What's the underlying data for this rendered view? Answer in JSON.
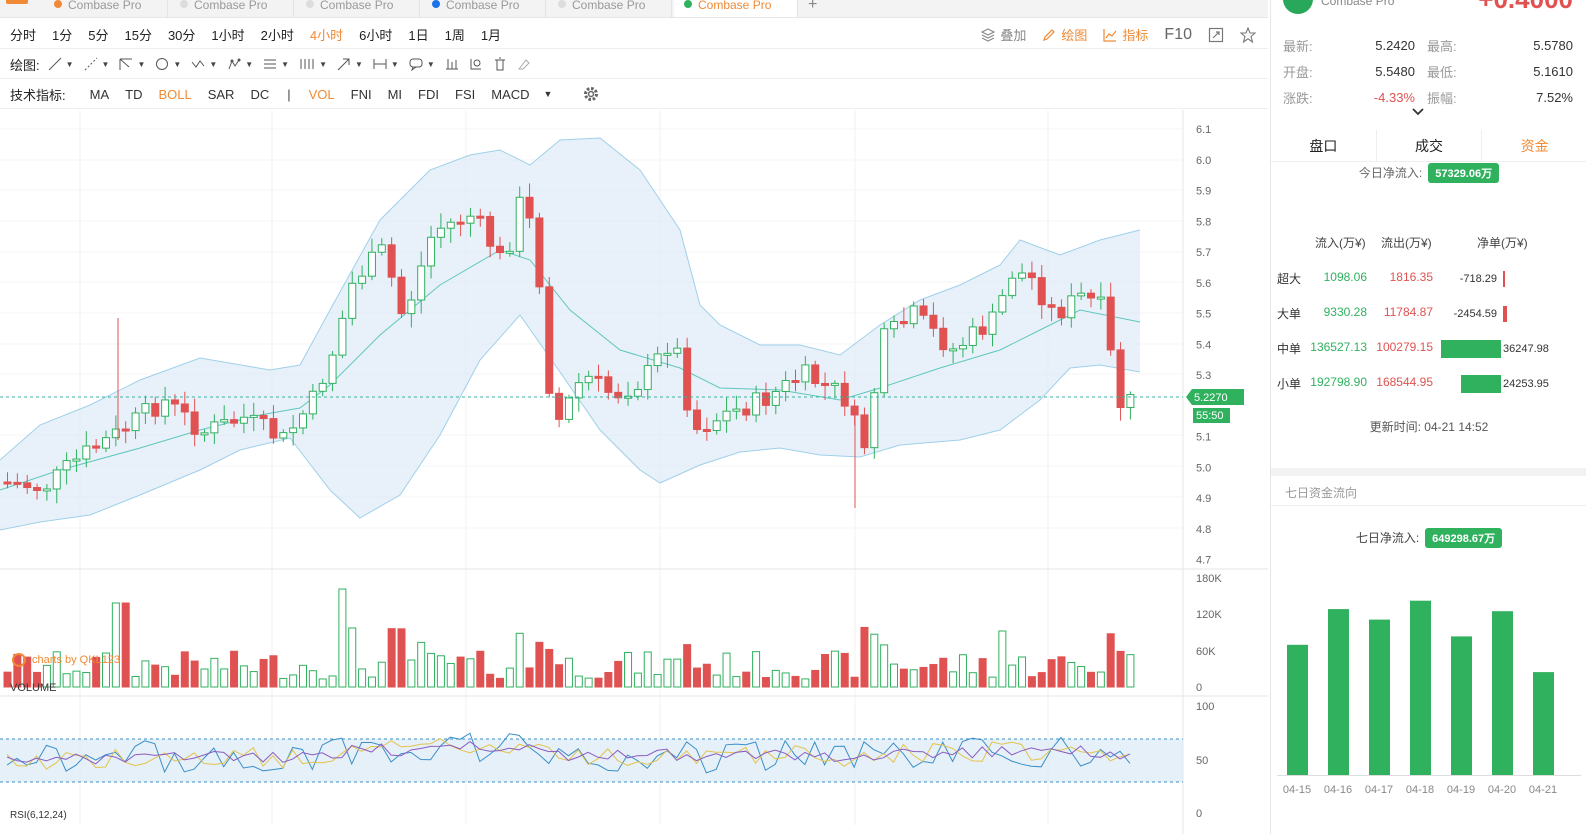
{
  "tabs": [
    {
      "name": "Combase Pro",
      "dot": "#f08a34",
      "active": false
    },
    {
      "name": "Combase Pro",
      "dot": "#dddddd",
      "active": false
    },
    {
      "name": "Combase Pro",
      "dot": "#dddddd",
      "active": false
    },
    {
      "name": "Combase Pro",
      "dot": "#1a73e8",
      "active": false
    },
    {
      "name": "Combase Pro",
      "dot": "#dddddd",
      "active": false
    },
    {
      "name": "Combase Pro",
      "dot": "#2fb15e",
      "active": true
    }
  ],
  "tab_add": "+",
  "timeframes": [
    "分时",
    "1分",
    "5分",
    "15分",
    "30分",
    "1小时",
    "2小时",
    "4小时",
    "6小时",
    "1日",
    "1周",
    "1月"
  ],
  "timeframe_selected": "4小时",
  "right_tools": {
    "overlay": "叠加",
    "draw": "绘图",
    "indicator": "指标",
    "f10": "F10"
  },
  "draw_label": "绘图:",
  "indicators_label": "技术指标:",
  "indicators_main": [
    "MA",
    "TD",
    "BOLL",
    "SAR",
    "DC"
  ],
  "indicators_main_selected": "BOLL",
  "indicators_sub": [
    "VOL",
    "FNI",
    "MI",
    "FDI",
    "FSI",
    "MACD"
  ],
  "indicators_sub_selected": "VOL",
  "separator": "|",
  "chart": {
    "price_axis": [
      "6.1",
      "6.0",
      "5.9",
      "5.8",
      "5.7",
      "5.6",
      "5.5",
      "5.4",
      "5.3",
      "5.1",
      "5.0",
      "4.9",
      "4.8",
      "4.7"
    ],
    "current_price": "5.2270",
    "countdown": "55:50",
    "watermark": "charts by QKL123",
    "volume_label": "VOLUME",
    "volume_axis": [
      "180K",
      "120K",
      "60K",
      "0"
    ],
    "rsi_label": "RSI(6,12,24)",
    "rsi_axis": [
      "100",
      "50",
      "0"
    ],
    "colors": {
      "up": "#2fb15e",
      "down": "#e05252",
      "band": "#dbeaf7",
      "mid": "#5fc7bd"
    }
  },
  "panel": {
    "name": "Combase Pro",
    "price": "+0.4000",
    "stats": [
      {
        "k1": "最新:",
        "v1": "5.2420",
        "k2": "最高:",
        "v2": "5.5780"
      },
      {
        "k1": "开盘:",
        "v1": "5.5480",
        "k2": "最低:",
        "v2": "5.1610"
      },
      {
        "k1": "涨跌:",
        "v1": "-4.33%",
        "k2": "振幅:",
        "v2": "7.52%"
      }
    ],
    "expand_icon": "chevron-down",
    "tabs": [
      "盘口",
      "成交",
      "资金"
    ],
    "tab_selected": "资金",
    "today_label": "今日净流入:",
    "today_value": "57329.06万",
    "flow_headers": [
      "流入(万¥)",
      "流出(万¥)",
      "净单(万¥)"
    ],
    "flows": [
      {
        "label": "超大",
        "in": "1098.06",
        "out": "1816.35",
        "net": "-718.29",
        "net_value": -718.29
      },
      {
        "label": "大单",
        "in": "9330.28",
        "out": "11784.87",
        "net": "-2454.59",
        "net_value": -2454.59
      },
      {
        "label": "中单",
        "in": "136527.13",
        "out": "100279.15",
        "net": "36247.98",
        "net_value": 36247.98
      },
      {
        "label": "小单",
        "in": "192798.90",
        "out": "168544.95",
        "net": "24253.95",
        "net_value": 24253.95
      }
    ],
    "update_time": "更新时间: 04-21 14:52",
    "seven_title": "七日资金流向",
    "seven_label": "七日净流入:",
    "seven_value": "649298.67万",
    "seven_days": [
      "04-15",
      "04-16",
      "04-17",
      "04-18",
      "04-19",
      "04-20",
      "04-21"
    ],
    "seven_values": [
      0.62,
      0.79,
      0.74,
      0.83,
      0.66,
      0.78,
      0.49
    ]
  }
}
